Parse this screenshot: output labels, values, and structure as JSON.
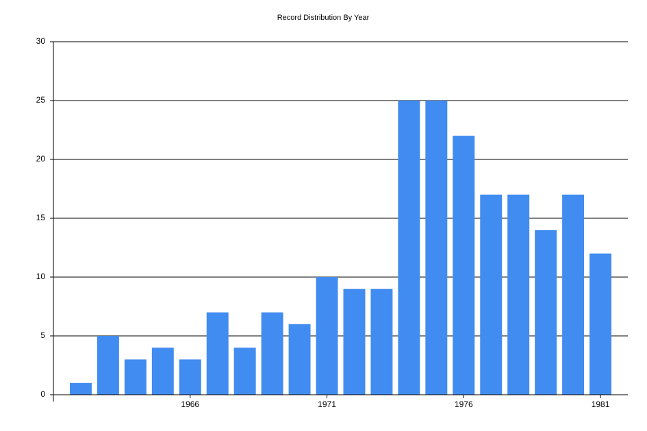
{
  "chart_data": {
    "type": "bar",
    "title": "Record Distribution By Year",
    "x": [
      1962,
      1963,
      1964,
      1965,
      1966,
      1967,
      1968,
      1969,
      1970,
      1971,
      1972,
      1973,
      1974,
      1975,
      1976,
      1977,
      1978,
      1979,
      1980,
      1981
    ],
    "values": [
      1,
      5,
      3,
      4,
      3,
      7,
      4,
      7,
      6,
      10,
      9,
      9,
      25,
      25,
      22,
      17,
      17,
      14,
      17,
      12
    ],
    "color": "#418cf0",
    "xlim": [
      1961,
      1982
    ],
    "xticks": [
      1966,
      1971,
      1976,
      1981
    ],
    "ylim": [
      0,
      30
    ],
    "yticks": [
      0,
      5,
      10,
      15,
      20,
      25,
      30
    ],
    "grid": true
  }
}
